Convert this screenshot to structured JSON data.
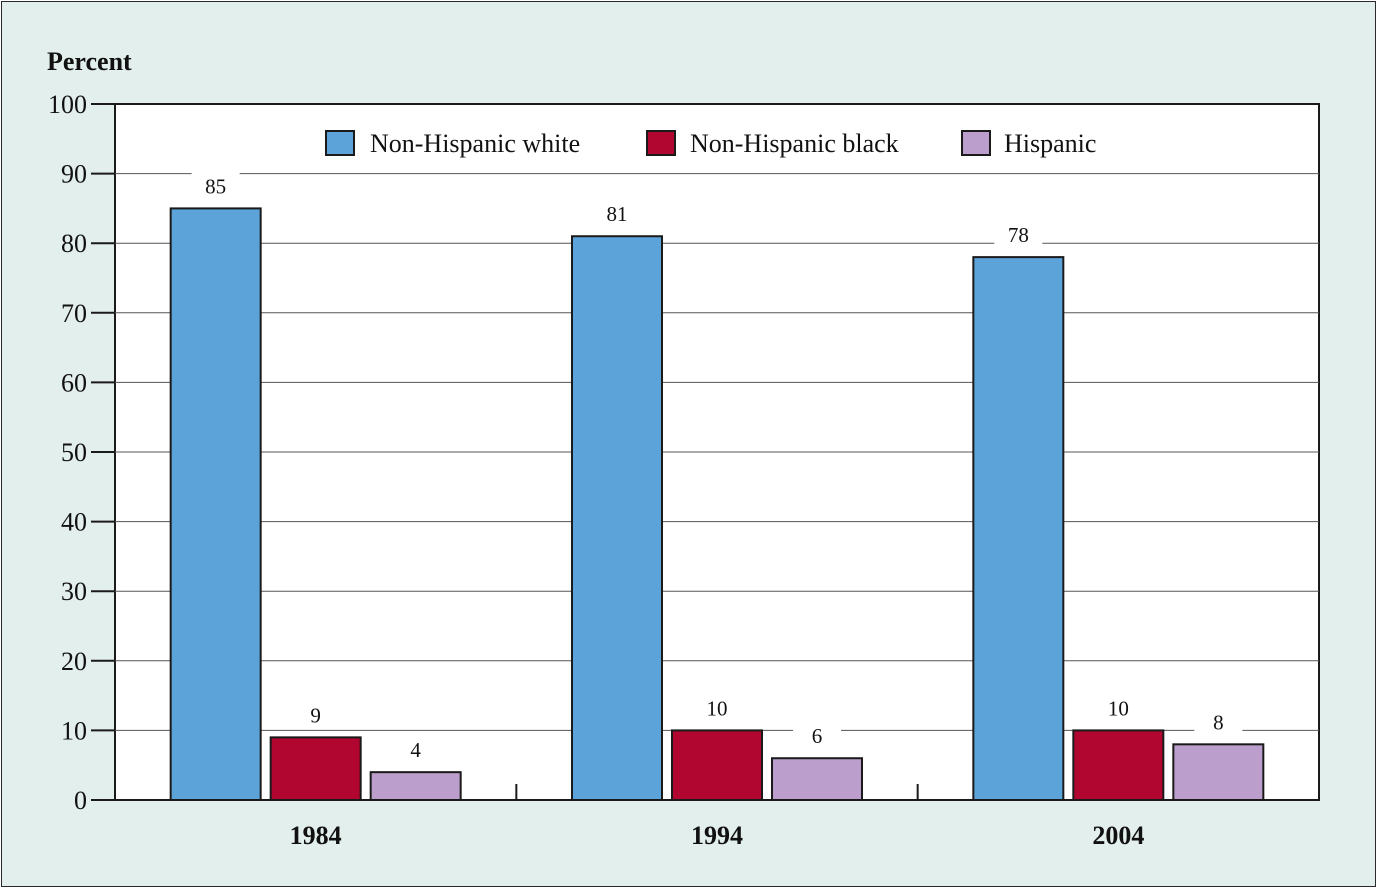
{
  "chart_data": {
    "type": "bar",
    "ylabel": "Percent",
    "ylim": [
      0,
      100
    ],
    "yticks": [
      0,
      10,
      20,
      30,
      40,
      50,
      60,
      70,
      80,
      90,
      100
    ],
    "categories": [
      "1984",
      "1994",
      "2004"
    ],
    "series": [
      {
        "name": "Non-Hispanic white",
        "color": "#5ba3d9",
        "values": [
          85,
          81,
          78
        ]
      },
      {
        "name": "Non-Hispanic black",
        "color": "#b0062f",
        "values": [
          9,
          10,
          10
        ]
      },
      {
        "name": "Hispanic",
        "color": "#bb9ecb",
        "values": [
          4,
          6,
          8
        ]
      }
    ],
    "grid": true,
    "legend_position": "top-center",
    "data_labels": true
  }
}
